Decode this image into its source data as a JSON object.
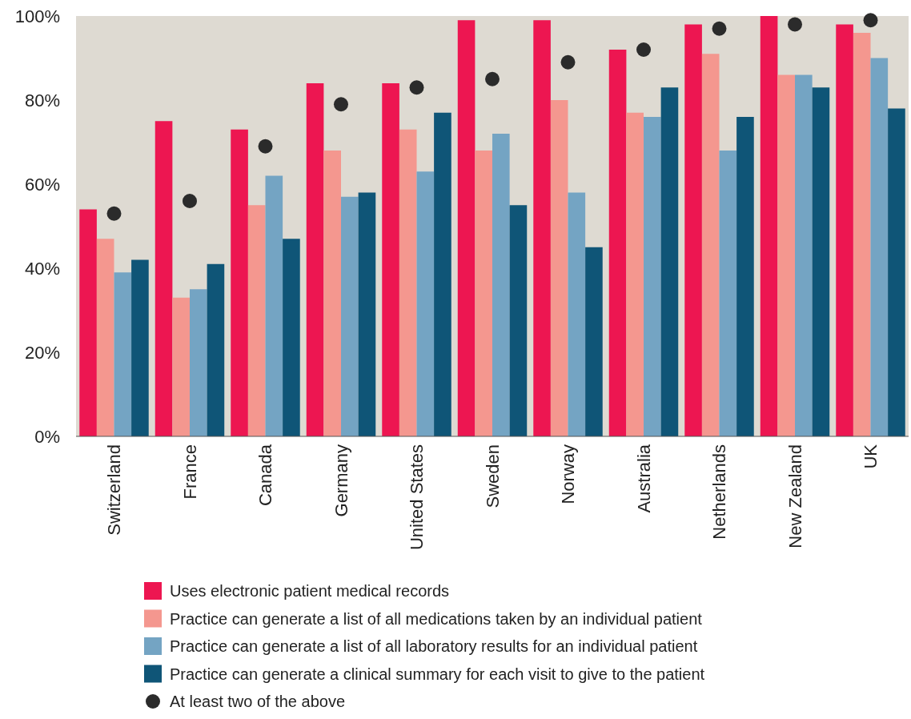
{
  "chart_data": {
    "type": "bar",
    "categories": [
      "Switzerland",
      "France",
      "Canada",
      "Germany",
      "United States",
      "Sweden",
      "Norway",
      "Australia",
      "Netherlands",
      "New Zealand",
      "UK"
    ],
    "series": [
      {
        "name": "Uses electronic patient medical records",
        "color": "#ed1651",
        "values": [
          54,
          75,
          73,
          84,
          84,
          99,
          99,
          92,
          98,
          100,
          98
        ]
      },
      {
        "name": "Practice can generate a list of all medications taken by an individual patient",
        "color": "#f4978f",
        "values": [
          47,
          33,
          55,
          68,
          73,
          68,
          80,
          77,
          91,
          86,
          96
        ]
      },
      {
        "name": "Practice can generate a list of all laboratory results for an individual patient",
        "color": "#74a4c3",
        "values": [
          39,
          35,
          62,
          57,
          63,
          72,
          58,
          76,
          68,
          86,
          90
        ]
      },
      {
        "name": "Practice can generate a clinical summary for each visit to give to the patient",
        "color": "#0f5577",
        "values": [
          42,
          41,
          47,
          58,
          77,
          55,
          45,
          83,
          76,
          83,
          78
        ]
      },
      {
        "name": "At least two of the above",
        "type": "scatter",
        "color": "#2b2b2b",
        "marker": "circle",
        "x": [
          "Switzerland",
          "France",
          "Canada",
          "Germany",
          "United States",
          "Sweden",
          "Norway",
          "Australia",
          "Netherlands",
          "New Zealand",
          "UK"
        ],
        "values": [
          53,
          56,
          69,
          79,
          83,
          85,
          89,
          92,
          97,
          98,
          99
        ]
      }
    ],
    "ylim": [
      0,
      100
    ],
    "yticks": [
      {
        "value": 0,
        "label": "0%"
      },
      {
        "value": 20,
        "label": "20%"
      },
      {
        "value": 40,
        "label": "40%"
      },
      {
        "value": 60,
        "label": "60%"
      },
      {
        "value": 80,
        "label": "80%"
      },
      {
        "value": 100,
        "label": "100%"
      }
    ],
    "grid": false,
    "legend": "bottom"
  }
}
